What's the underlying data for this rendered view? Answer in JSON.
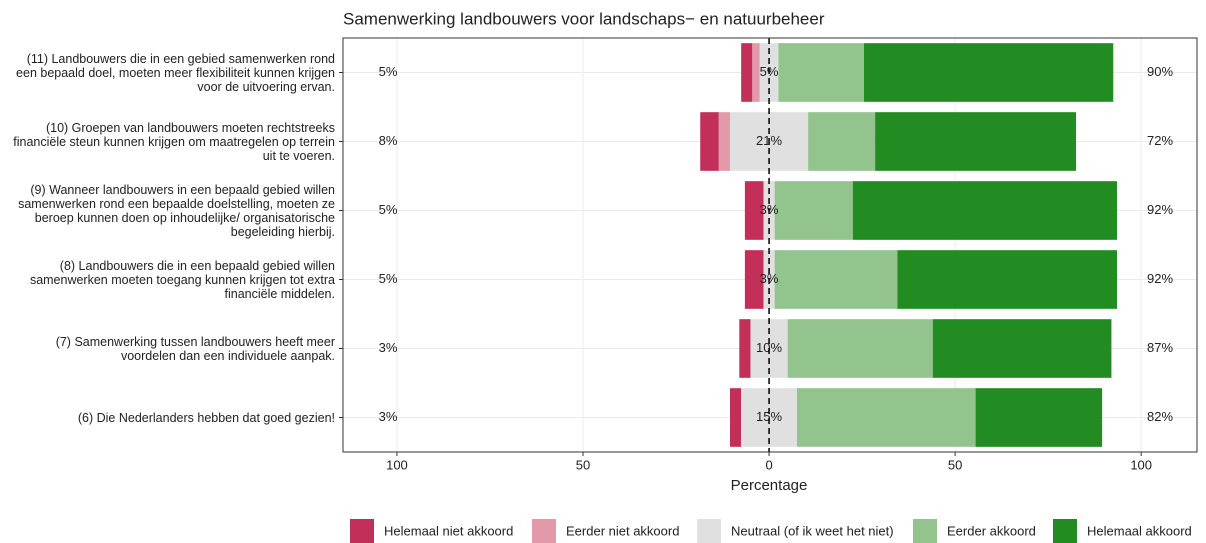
{
  "chart_data": {
    "type": "diverging_bar",
    "title": "Samenwerking landbouwers voor landschaps− en natuurbeheer",
    "x_label": "Percentage",
    "categories": [
      "(11) Landbouwers die in een gebied samenwerken rond een bepaald doel, moeten meer flexibiliteit kunnen krijgen voor de uitvoering ervan.",
      "(10) Groepen van landbouwers moeten rechtstreeks financiële steun kunnen krijgen om maatregelen op terrein uit te voeren.",
      "(9) Wanneer landbouwers in een bepaald gebied willen samenwerken rond een bepaalde doelstelling, moeten ze beroep kunnen doen op inhoudelijke/ organisatorische begeleiding hierbij.",
      "(8) Landbouwers die in een bepaald gebied willen samenwerken moeten toegang kunnen krijgen tot extra financiële middelen.",
      "(7) Samenwerking tussen landbouwers heeft meer voordelen dan een individuele aanpak.",
      "(6) Die Nederlanders hebben dat goed gezien!"
    ],
    "series": [
      {
        "name": "Helemaal niet akkoord",
        "color": "#c2305a",
        "values": [
          3,
          5,
          5,
          5,
          3,
          3
        ]
      },
      {
        "name": "Eerder niet akkoord",
        "color": "#e29aab",
        "values": [
          2,
          3,
          0,
          0,
          0,
          0
        ]
      },
      {
        "name": "Neutraal (of ik weet het niet)",
        "color": "#e0e0e0",
        "values": [
          5,
          21,
          3,
          3,
          10,
          15
        ],
        "value_labels": [
          "5%",
          "21%",
          "3%",
          "3%",
          "10%",
          "15%"
        ]
      },
      {
        "name": "Eerder akkoord",
        "color": "#93c48e",
        "values": [
          23,
          18,
          21,
          33,
          39,
          48
        ]
      },
      {
        "name": "Helemaal akkoord",
        "color": "#228b22",
        "values": [
          67,
          54,
          71,
          59,
          48,
          34
        ]
      }
    ],
    "totals": [
      {
        "values": [
          5,
          8,
          5,
          5,
          3,
          3
        ],
        "value_labels": [
          "5%",
          "8%",
          "5%",
          "5%",
          "3%",
          "3%"
        ]
      },
      {
        "values": [
          90,
          72,
          92,
          92,
          87,
          82
        ],
        "value_labels": [
          "90%",
          "72%",
          "92%",
          "92%",
          "87%",
          "82%"
        ]
      }
    ],
    "xlim": [
      -114.5,
      115
    ],
    "xticks": [
      {
        "value": -100,
        "label": "100"
      },
      {
        "value": -50,
        "label": "50"
      },
      0,
      50,
      100
    ],
    "grid": true
  }
}
